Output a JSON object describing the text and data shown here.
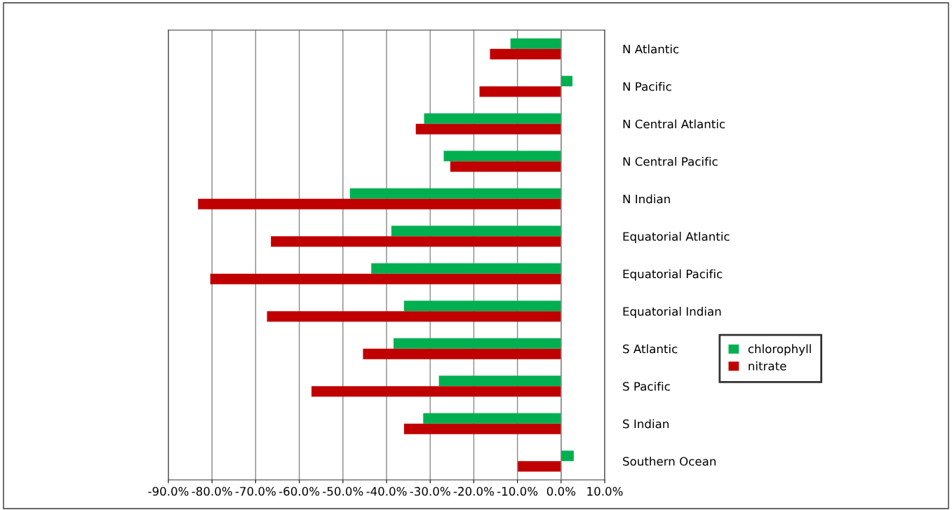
{
  "chart_data": {
    "type": "bar",
    "orientation": "horizontal",
    "categories": [
      "N Atlantic",
      "N Pacific",
      "N Central Atlantic",
      "N Central Pacific",
      "N Indian",
      "Equatorial Atlantic",
      "Equatorial Pacific",
      "Equatorial Indian",
      "S Atlantic",
      "S Pacific",
      "S Indian",
      "Southern Ocean"
    ],
    "series": [
      {
        "name": "chlorophyll",
        "color": "#00b050",
        "values": [
          -11.6,
          2.6,
          -31.4,
          -26.9,
          -48.4,
          -38.9,
          -43.5,
          -36.0,
          -38.4,
          -28.0,
          -31.6,
          2.9
        ]
      },
      {
        "name": "nitrate",
        "color": "#c00000",
        "values": [
          -16.3,
          -18.7,
          -33.3,
          -25.4,
          -83.2,
          -66.5,
          -80.4,
          -67.4,
          -45.4,
          -57.2,
          -36.0,
          -9.9
        ]
      }
    ],
    "xlim": [
      -90,
      10
    ],
    "xticks": [
      {
        "value": -90,
        "label": "-90.0%"
      },
      {
        "value": -80,
        "label": "-80.0%"
      },
      {
        "value": -70,
        "label": "-70.0%"
      },
      {
        "value": -60,
        "label": "-60.0%"
      },
      {
        "value": -50,
        "label": "-50.0%"
      },
      {
        "value": -40,
        "label": "-40.0%"
      },
      {
        "value": -30,
        "label": "-30.0%"
      },
      {
        "value": -20,
        "label": "-20.0%"
      },
      {
        "value": -10,
        "label": "-10.0%"
      },
      {
        "value": 0,
        "label": "0.0%"
      },
      {
        "value": 10,
        "label": "10.0%"
      }
    ],
    "grid": "x",
    "legend": "right"
  }
}
